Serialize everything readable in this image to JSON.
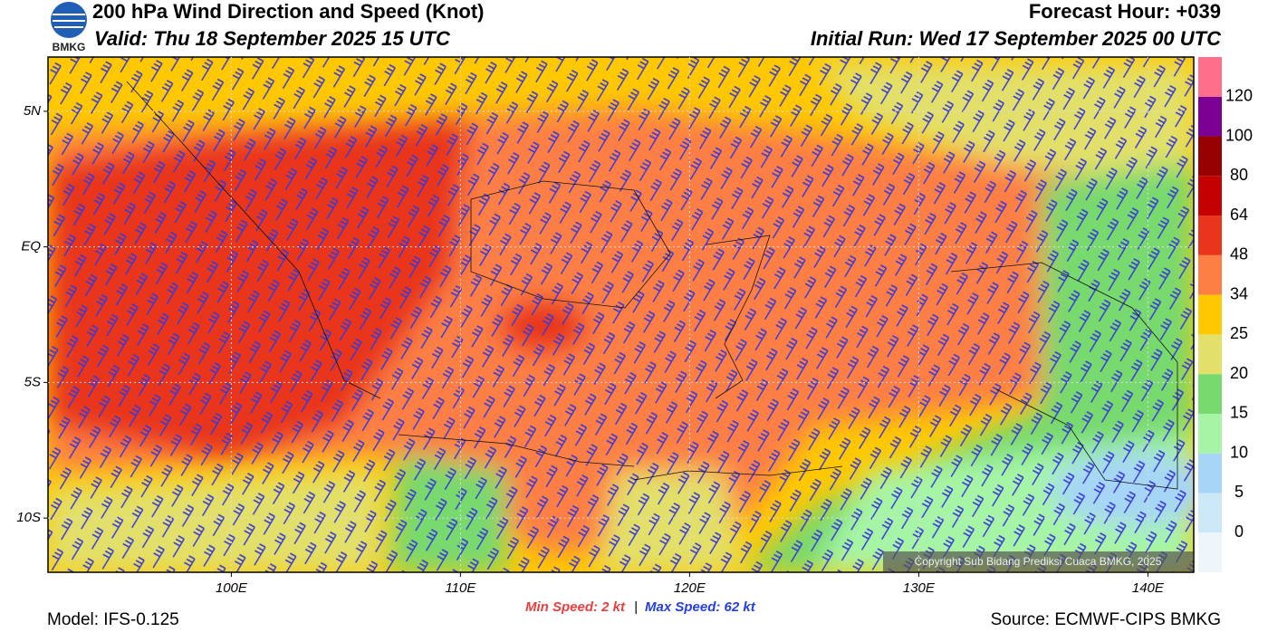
{
  "header": {
    "title": "200 hPa Wind Direction and Speed (Knot)",
    "valid": "Valid: Thu 18 September 2025 15 UTC",
    "forecast_hour": "Forecast Hour: +039",
    "initial_run": "Initial Run: Wed 17 September 2025 00 UTC",
    "logo": "BMKG"
  },
  "map": {
    "xlim": [
      92,
      142
    ],
    "ylim": [
      -12,
      7
    ],
    "xticks": [
      {
        "value": 100,
        "label": "100E"
      },
      {
        "value": 110,
        "label": "110E"
      },
      {
        "value": 120,
        "label": "120E"
      },
      {
        "value": 130,
        "label": "130E"
      },
      {
        "value": 140,
        "label": "140E"
      }
    ],
    "yticks": [
      {
        "value": 5,
        "label": "5N"
      },
      {
        "value": 0,
        "label": "EQ"
      },
      {
        "value": -5,
        "label": "5S"
      },
      {
        "value": -10,
        "label": "10S"
      }
    ],
    "grid": true,
    "copyright": "Copyright Sub Bidang Prediksi Cuaca BMKG, 2025"
  },
  "colorbar": {
    "levels": [
      0,
      5,
      10,
      15,
      20,
      25,
      34,
      48,
      64,
      80,
      100,
      120
    ],
    "colors": [
      "#eef6fc",
      "#cce8f7",
      "#a6d5f7",
      "#a6f5a6",
      "#77d96e",
      "#e2e06a",
      "#ffc800",
      "#fe7f44",
      "#e8351b",
      "#c40000",
      "#960000",
      "#7c0093",
      "#ff6f8c"
    ]
  },
  "footer": {
    "min_speed": "Min Speed:   2 kt",
    "max_speed": "Max Speed:  62 kt",
    "separator": "|",
    "model": "Model: IFS-0.125",
    "source": "Source: ECMWF-CIPS BMKG"
  }
}
